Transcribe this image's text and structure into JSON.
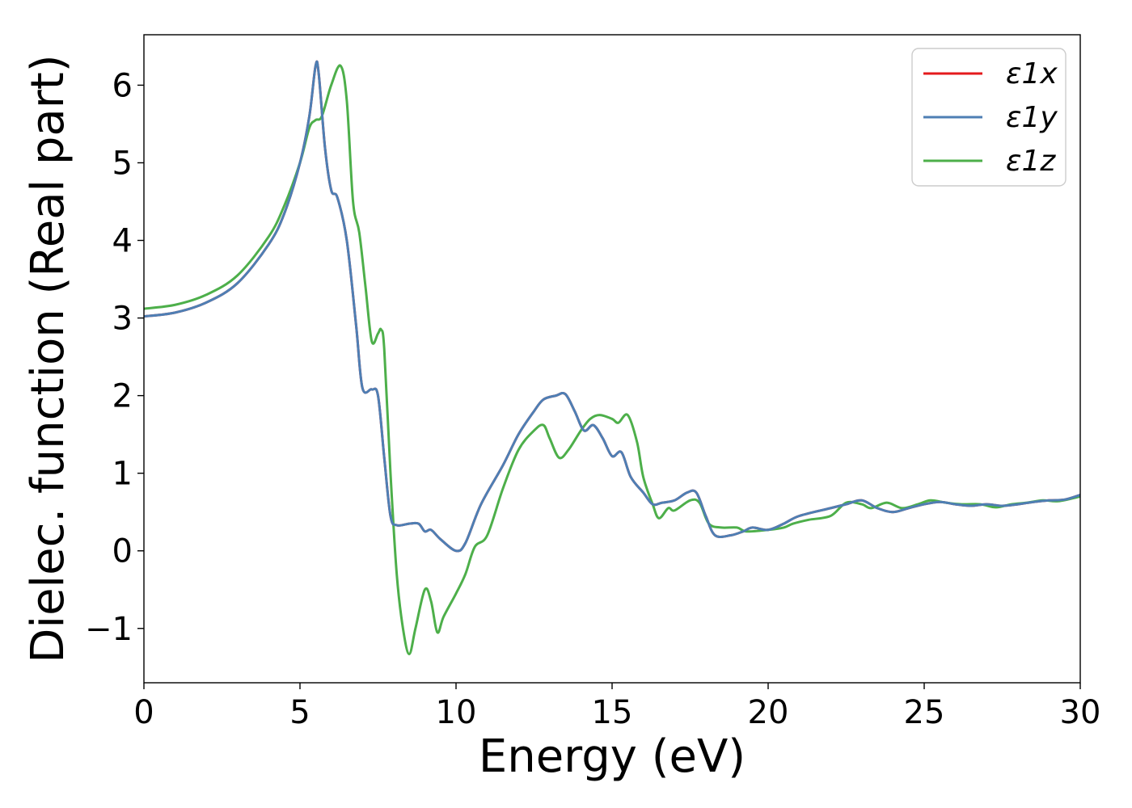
{
  "chart_data": {
    "type": "line",
    "xlabel": "Energy (eV)",
    "ylabel": "Dielec. function (Real part)",
    "xlim": [
      0,
      30
    ],
    "ylim": [
      -1.7,
      6.65
    ],
    "x_ticks": [
      {
        "value": 0,
        "label": "0"
      },
      {
        "value": 5,
        "label": "5"
      },
      {
        "value": 10,
        "label": "10"
      },
      {
        "value": 15,
        "label": "15"
      },
      {
        "value": 20,
        "label": "20"
      },
      {
        "value": 25,
        "label": "25"
      },
      {
        "value": 30,
        "label": "30"
      }
    ],
    "y_ticks": [
      {
        "value": -1,
        "label": "−1"
      },
      {
        "value": 0,
        "label": "0"
      },
      {
        "value": 1,
        "label": "1"
      },
      {
        "value": 2,
        "label": "2"
      },
      {
        "value": 3,
        "label": "3"
      },
      {
        "value": 4,
        "label": "4"
      },
      {
        "value": 5,
        "label": "5"
      },
      {
        "value": 6,
        "label": "6"
      }
    ],
    "grid": false,
    "legend": "top-right",
    "series": [
      {
        "name": "ε1x",
        "color": "#e41a1c",
        "points": [
          [
            0,
            3.02
          ],
          [
            1,
            3.07
          ],
          [
            2,
            3.2
          ],
          [
            3,
            3.45
          ],
          [
            4,
            3.95
          ],
          [
            4.5,
            4.35
          ],
          [
            5,
            5.0
          ],
          [
            5.3,
            5.6
          ],
          [
            5.5,
            6.25
          ],
          [
            5.6,
            6.15
          ],
          [
            5.8,
            5.2
          ],
          [
            6.0,
            4.65
          ],
          [
            6.2,
            4.55
          ],
          [
            6.5,
            4.0
          ],
          [
            6.8,
            2.9
          ],
          [
            7.0,
            2.1
          ],
          [
            7.3,
            2.08
          ],
          [
            7.5,
            2.0
          ],
          [
            7.7,
            1.2
          ],
          [
            7.9,
            0.45
          ],
          [
            8.1,
            0.33
          ],
          [
            8.5,
            0.35
          ],
          [
            8.8,
            0.35
          ],
          [
            9.0,
            0.25
          ],
          [
            9.2,
            0.27
          ],
          [
            9.5,
            0.15
          ],
          [
            10.0,
            0.0
          ],
          [
            10.3,
            0.1
          ],
          [
            10.8,
            0.6
          ],
          [
            11.5,
            1.1
          ],
          [
            12.0,
            1.5
          ],
          [
            12.5,
            1.8
          ],
          [
            12.8,
            1.95
          ],
          [
            13.2,
            2.0
          ],
          [
            13.5,
            2.02
          ],
          [
            13.8,
            1.8
          ],
          [
            14.1,
            1.55
          ],
          [
            14.4,
            1.62
          ],
          [
            14.7,
            1.45
          ],
          [
            15.0,
            1.22
          ],
          [
            15.3,
            1.27
          ],
          [
            15.6,
            0.95
          ],
          [
            16.0,
            0.75
          ],
          [
            16.3,
            0.6
          ],
          [
            16.6,
            0.62
          ],
          [
            17.0,
            0.65
          ],
          [
            17.4,
            0.75
          ],
          [
            17.7,
            0.75
          ],
          [
            18.0,
            0.45
          ],
          [
            18.3,
            0.2
          ],
          [
            18.8,
            0.2
          ],
          [
            19.2,
            0.25
          ],
          [
            19.5,
            0.3
          ],
          [
            20.0,
            0.27
          ],
          [
            20.5,
            0.35
          ],
          [
            21.0,
            0.45
          ],
          [
            22.0,
            0.55
          ],
          [
            22.5,
            0.6
          ],
          [
            23.0,
            0.65
          ],
          [
            23.5,
            0.55
          ],
          [
            24.0,
            0.5
          ],
          [
            24.5,
            0.55
          ],
          [
            25.0,
            0.6
          ],
          [
            25.5,
            0.63
          ],
          [
            26.0,
            0.6
          ],
          [
            26.5,
            0.58
          ],
          [
            27.0,
            0.6
          ],
          [
            27.5,
            0.58
          ],
          [
            28.0,
            0.6
          ],
          [
            28.5,
            0.63
          ],
          [
            29.0,
            0.65
          ],
          [
            29.5,
            0.66
          ],
          [
            30.0,
            0.72
          ]
        ]
      },
      {
        "name": "ε1y",
        "color": "#4e7fb4",
        "points": [
          [
            0,
            3.02
          ],
          [
            1,
            3.07
          ],
          [
            2,
            3.2
          ],
          [
            3,
            3.45
          ],
          [
            4,
            3.95
          ],
          [
            4.5,
            4.35
          ],
          [
            5,
            5.0
          ],
          [
            5.3,
            5.6
          ],
          [
            5.5,
            6.25
          ],
          [
            5.6,
            6.15
          ],
          [
            5.8,
            5.2
          ],
          [
            6.0,
            4.65
          ],
          [
            6.2,
            4.55
          ],
          [
            6.5,
            4.0
          ],
          [
            6.8,
            2.9
          ],
          [
            7.0,
            2.1
          ],
          [
            7.3,
            2.08
          ],
          [
            7.5,
            2.0
          ],
          [
            7.7,
            1.2
          ],
          [
            7.9,
            0.45
          ],
          [
            8.1,
            0.33
          ],
          [
            8.5,
            0.35
          ],
          [
            8.8,
            0.35
          ],
          [
            9.0,
            0.25
          ],
          [
            9.2,
            0.27
          ],
          [
            9.5,
            0.15
          ],
          [
            10.0,
            0.0
          ],
          [
            10.3,
            0.1
          ],
          [
            10.8,
            0.6
          ],
          [
            11.5,
            1.1
          ],
          [
            12.0,
            1.5
          ],
          [
            12.5,
            1.8
          ],
          [
            12.8,
            1.95
          ],
          [
            13.2,
            2.0
          ],
          [
            13.5,
            2.02
          ],
          [
            13.8,
            1.8
          ],
          [
            14.1,
            1.55
          ],
          [
            14.4,
            1.62
          ],
          [
            14.7,
            1.45
          ],
          [
            15.0,
            1.22
          ],
          [
            15.3,
            1.27
          ],
          [
            15.6,
            0.95
          ],
          [
            16.0,
            0.75
          ],
          [
            16.3,
            0.6
          ],
          [
            16.6,
            0.62
          ],
          [
            17.0,
            0.65
          ],
          [
            17.4,
            0.75
          ],
          [
            17.7,
            0.75
          ],
          [
            18.0,
            0.45
          ],
          [
            18.3,
            0.2
          ],
          [
            18.8,
            0.2
          ],
          [
            19.2,
            0.25
          ],
          [
            19.5,
            0.3
          ],
          [
            20.0,
            0.27
          ],
          [
            20.5,
            0.35
          ],
          [
            21.0,
            0.45
          ],
          [
            22.0,
            0.55
          ],
          [
            22.5,
            0.6
          ],
          [
            23.0,
            0.65
          ],
          [
            23.5,
            0.55
          ],
          [
            24.0,
            0.5
          ],
          [
            24.5,
            0.55
          ],
          [
            25.0,
            0.6
          ],
          [
            25.5,
            0.63
          ],
          [
            26.0,
            0.6
          ],
          [
            26.5,
            0.58
          ],
          [
            27.0,
            0.6
          ],
          [
            27.5,
            0.58
          ],
          [
            28.0,
            0.6
          ],
          [
            28.5,
            0.63
          ],
          [
            29.0,
            0.65
          ],
          [
            29.5,
            0.66
          ],
          [
            30.0,
            0.72
          ]
        ]
      },
      {
        "name": "ε1z",
        "color": "#4daf4a",
        "points": [
          [
            0,
            3.12
          ],
          [
            1,
            3.17
          ],
          [
            2,
            3.3
          ],
          [
            3,
            3.55
          ],
          [
            4,
            4.05
          ],
          [
            4.5,
            4.45
          ],
          [
            5,
            5.0
          ],
          [
            5.3,
            5.45
          ],
          [
            5.5,
            5.55
          ],
          [
            5.7,
            5.6
          ],
          [
            6.0,
            6.0
          ],
          [
            6.3,
            6.25
          ],
          [
            6.5,
            5.8
          ],
          [
            6.7,
            4.5
          ],
          [
            6.9,
            4.1
          ],
          [
            7.1,
            3.4
          ],
          [
            7.3,
            2.7
          ],
          [
            7.5,
            2.8
          ],
          [
            7.6,
            2.85
          ],
          [
            7.7,
            2.6
          ],
          [
            7.9,
            1.0
          ],
          [
            8.1,
            -0.3
          ],
          [
            8.3,
            -1.0
          ],
          [
            8.5,
            -1.33
          ],
          [
            8.7,
            -1.0
          ],
          [
            9.0,
            -0.5
          ],
          [
            9.2,
            -0.65
          ],
          [
            9.4,
            -1.05
          ],
          [
            9.6,
            -0.85
          ],
          [
            10.0,
            -0.55
          ],
          [
            10.3,
            -0.3
          ],
          [
            10.6,
            0.05
          ],
          [
            11.0,
            0.2
          ],
          [
            11.5,
            0.8
          ],
          [
            12.0,
            1.3
          ],
          [
            12.5,
            1.55
          ],
          [
            12.8,
            1.62
          ],
          [
            13.0,
            1.45
          ],
          [
            13.3,
            1.2
          ],
          [
            13.6,
            1.3
          ],
          [
            14.0,
            1.55
          ],
          [
            14.3,
            1.7
          ],
          [
            14.6,
            1.75
          ],
          [
            15.0,
            1.7
          ],
          [
            15.2,
            1.65
          ],
          [
            15.5,
            1.75
          ],
          [
            15.8,
            1.4
          ],
          [
            16.0,
            0.95
          ],
          [
            16.3,
            0.6
          ],
          [
            16.5,
            0.42
          ],
          [
            16.8,
            0.55
          ],
          [
            17.0,
            0.52
          ],
          [
            17.5,
            0.65
          ],
          [
            17.8,
            0.62
          ],
          [
            18.1,
            0.35
          ],
          [
            18.5,
            0.3
          ],
          [
            19.0,
            0.3
          ],
          [
            19.3,
            0.25
          ],
          [
            20.0,
            0.27
          ],
          [
            20.5,
            0.3
          ],
          [
            20.8,
            0.35
          ],
          [
            21.3,
            0.4
          ],
          [
            22.0,
            0.45
          ],
          [
            22.5,
            0.62
          ],
          [
            23.0,
            0.6
          ],
          [
            23.3,
            0.55
          ],
          [
            23.8,
            0.62
          ],
          [
            24.3,
            0.55
          ],
          [
            24.8,
            0.6
          ],
          [
            25.2,
            0.65
          ],
          [
            25.7,
            0.62
          ],
          [
            26.2,
            0.6
          ],
          [
            26.8,
            0.6
          ],
          [
            27.3,
            0.56
          ],
          [
            27.8,
            0.6
          ],
          [
            28.3,
            0.62
          ],
          [
            28.8,
            0.65
          ],
          [
            29.3,
            0.64
          ],
          [
            30.0,
            0.7
          ]
        ]
      }
    ]
  }
}
